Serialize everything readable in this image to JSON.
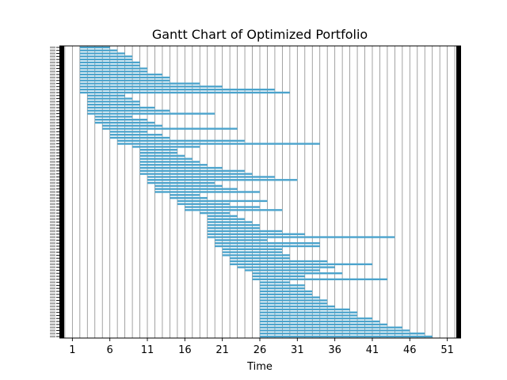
{
  "chart_data": {
    "type": "gantt",
    "title": "Gantt Chart of Optimized Portfolio",
    "xlabel": "Time",
    "ylabel": "",
    "xlim": [
      -0.2,
      52.2
    ],
    "x_tick_labels": [
      1,
      6,
      11,
      16,
      21,
      26,
      31,
      36,
      41,
      46,
      51
    ],
    "grid": "vertical lines at every integer time",
    "bar_color": "#4aa3cc",
    "tasks": [
      {
        "start": 2,
        "end": 6
      },
      {
        "start": 2,
        "end": 7
      },
      {
        "start": 2,
        "end": 8
      },
      {
        "start": 2,
        "end": 9
      },
      {
        "start": 2,
        "end": 9
      },
      {
        "start": 2,
        "end": 10
      },
      {
        "start": 2,
        "end": 10
      },
      {
        "start": 2,
        "end": 11
      },
      {
        "start": 2,
        "end": 11
      },
      {
        "start": 2,
        "end": 13
      },
      {
        "start": 2,
        "end": 14
      },
      {
        "start": 2,
        "end": 14
      },
      {
        "start": 2,
        "end": 18
      },
      {
        "start": 2,
        "end": 21
      },
      {
        "start": 2,
        "end": 28
      },
      {
        "start": 2,
        "end": 30
      },
      {
        "start": 3,
        "end": 8
      },
      {
        "start": 3,
        "end": 9
      },
      {
        "start": 3,
        "end": 10
      },
      {
        "start": 3,
        "end": 10
      },
      {
        "start": 3,
        "end": 12
      },
      {
        "start": 3,
        "end": 14
      },
      {
        "start": 3,
        "end": 20
      },
      {
        "start": 4,
        "end": 9
      },
      {
        "start": 4,
        "end": 11
      },
      {
        "start": 4,
        "end": 12
      },
      {
        "start": 5,
        "end": 13
      },
      {
        "start": 5,
        "end": 23
      },
      {
        "start": 6,
        "end": 11
      },
      {
        "start": 6,
        "end": 13
      },
      {
        "start": 6,
        "end": 14
      },
      {
        "start": 7,
        "end": 24
      },
      {
        "start": 7,
        "end": 34
      },
      {
        "start": 9,
        "end": 18
      },
      {
        "start": 10,
        "end": 15
      },
      {
        "start": 10,
        "end": 15
      },
      {
        "start": 10,
        "end": 16
      },
      {
        "start": 10,
        "end": 17
      },
      {
        "start": 10,
        "end": 18
      },
      {
        "start": 10,
        "end": 19
      },
      {
        "start": 10,
        "end": 21
      },
      {
        "start": 10,
        "end": 24
      },
      {
        "start": 10,
        "end": 25
      },
      {
        "start": 11,
        "end": 28
      },
      {
        "start": 11,
        "end": 31
      },
      {
        "start": 11,
        "end": 20
      },
      {
        "start": 12,
        "end": 21
      },
      {
        "start": 12,
        "end": 23
      },
      {
        "start": 12,
        "end": 26
      },
      {
        "start": 14,
        "end": 18
      },
      {
        "start": 14,
        "end": 19
      },
      {
        "start": 15,
        "end": 27
      },
      {
        "start": 15,
        "end": 22
      },
      {
        "start": 16,
        "end": 26
      },
      {
        "start": 16,
        "end": 29
      },
      {
        "start": 18,
        "end": 22
      },
      {
        "start": 19,
        "end": 23
      },
      {
        "start": 19,
        "end": 24
      },
      {
        "start": 19,
        "end": 25
      },
      {
        "start": 19,
        "end": 26
      },
      {
        "start": 19,
        "end": 26
      },
      {
        "start": 19,
        "end": 29
      },
      {
        "start": 19,
        "end": 32
      },
      {
        "start": 19,
        "end": 44
      },
      {
        "start": 20,
        "end": 27
      },
      {
        "start": 20,
        "end": 34
      },
      {
        "start": 20,
        "end": 34
      },
      {
        "start": 21,
        "end": 29
      },
      {
        "start": 21,
        "end": 29
      },
      {
        "start": 21,
        "end": 30
      },
      {
        "start": 22,
        "end": 30
      },
      {
        "start": 22,
        "end": 35
      },
      {
        "start": 22,
        "end": 41
      },
      {
        "start": 23,
        "end": 36
      },
      {
        "start": 24,
        "end": 34
      },
      {
        "start": 25,
        "end": 37
      },
      {
        "start": 25,
        "end": 32
      },
      {
        "start": 25,
        "end": 43
      },
      {
        "start": 26,
        "end": 30
      },
      {
        "start": 26,
        "end": 32
      },
      {
        "start": 26,
        "end": 32
      },
      {
        "start": 26,
        "end": 33
      },
      {
        "start": 26,
        "end": 33
      },
      {
        "start": 26,
        "end": 34
      },
      {
        "start": 26,
        "end": 35
      },
      {
        "start": 26,
        "end": 35
      },
      {
        "start": 26,
        "end": 36
      },
      {
        "start": 26,
        "end": 38
      },
      {
        "start": 26,
        "end": 39
      },
      {
        "start": 26,
        "end": 39
      },
      {
        "start": 26,
        "end": 41
      },
      {
        "start": 26,
        "end": 42
      },
      {
        "start": 26,
        "end": 43
      },
      {
        "start": 26,
        "end": 45
      },
      {
        "start": 26,
        "end": 46
      },
      {
        "start": 26,
        "end": 48
      },
      {
        "start": 26,
        "end": 49
      }
    ]
  }
}
